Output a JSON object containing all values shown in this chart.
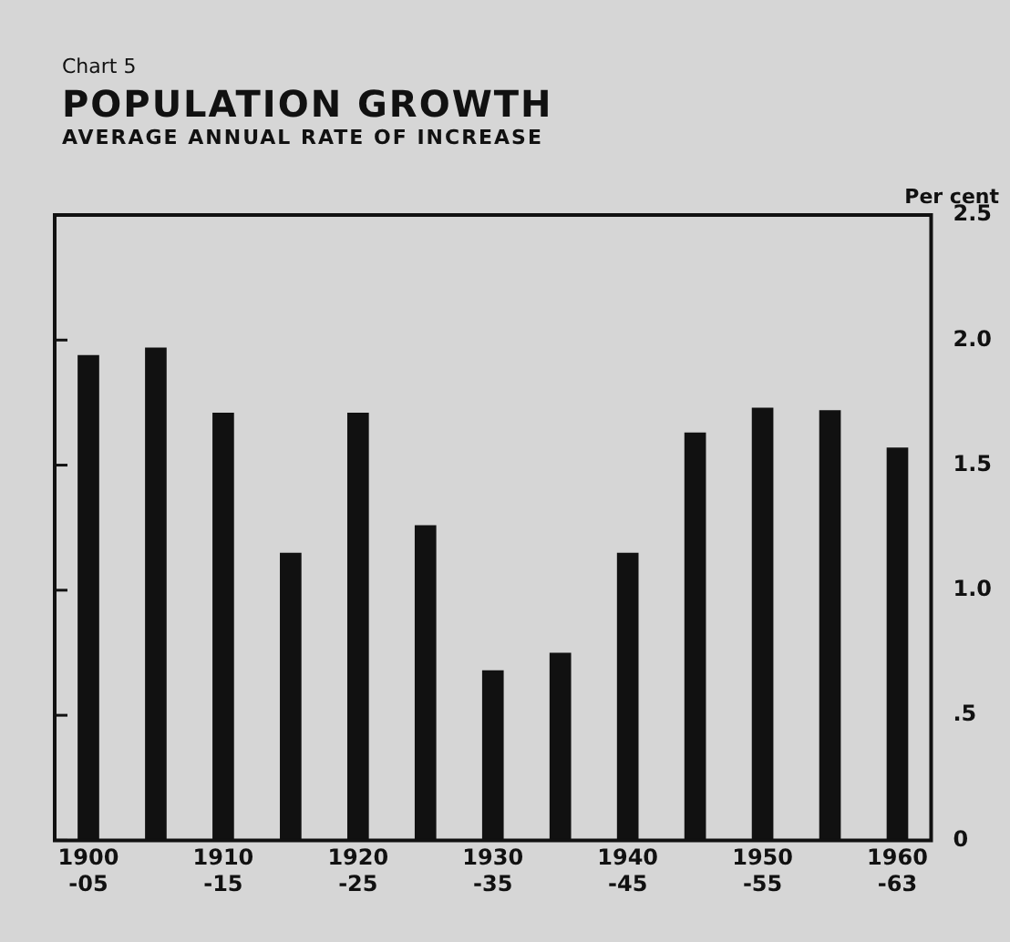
{
  "chart_data": {
    "type": "bar",
    "title": "POPULATION GROWTH",
    "subtitle": "AVERAGE ANNUAL RATE OF INCREASE",
    "ylabel": "Per cent",
    "annotations": [
      "Chart 5"
    ],
    "categories": [
      "1900\n-05",
      null,
      "1910\n-15",
      null,
      "1920\n-25",
      null,
      "1930\n-35",
      null,
      "1940\n-45",
      null,
      "1950\n-55",
      null,
      "1960\n-63"
    ],
    "values": [
      1.94,
      1.97,
      1.71,
      1.15,
      1.71,
      1.26,
      0.68,
      0.75,
      1.15,
      1.63,
      1.73,
      1.72,
      1.57
    ],
    "color": "#111111",
    "ylim": [
      0,
      2.5
    ],
    "yticks": [
      0,
      {
        "value": 0.5,
        "label": ".5"
      },
      {
        "value": 1,
        "label": "1.0"
      },
      {
        "value": 1.5,
        "label": "1.5"
      },
      {
        "value": 2,
        "label": "2.0"
      },
      2.5
    ],
    "grid": false,
    "legend": false
  }
}
